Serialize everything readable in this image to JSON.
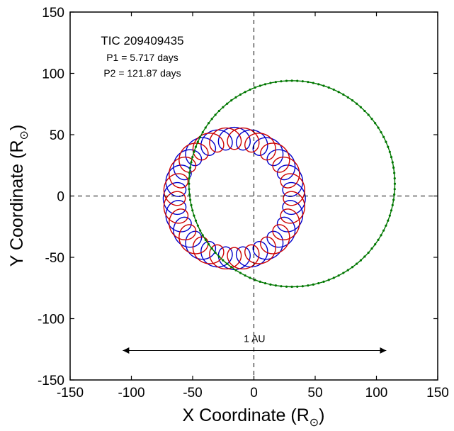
{
  "chart_data": {
    "type": "line",
    "xlabel": "X Coordinate",
    "ylabel": "Y Coordinate",
    "unit_symbol": "R",
    "unit_subscript": "⊙",
    "xlim": [
      -150,
      150
    ],
    "ylim": [
      -150,
      150
    ],
    "xticks": [
      -150,
      -100,
      -50,
      0,
      50,
      100,
      150
    ],
    "yticks": [
      -150,
      -100,
      -50,
      0,
      50,
      100,
      150
    ],
    "annotation": {
      "title": "TIC 209409435",
      "line1": "P1 = 5.717 days",
      "line2": "P2 = 121.87 days"
    },
    "scale_bar": {
      "label": "1 AU",
      "x_from": -107,
      "x_to": 108,
      "y": -126
    },
    "zero_lines": true,
    "series": [
      {
        "color": "#0000cc",
        "kind": "loops",
        "center": [
          -16,
          -2
        ],
        "radius": 49,
        "epicycle": 9,
        "loops": 21,
        "phase_deg": 0
      },
      {
        "color": "#cc0000",
        "kind": "loops",
        "center": [
          -16,
          -2
        ],
        "radius": 49,
        "epicycle": 9,
        "loops": 21,
        "phase_deg": 180
      },
      {
        "color": "#007700",
        "kind": "circle_with_markers",
        "center": [
          31,
          10
        ],
        "radius": 84,
        "markers": 120
      }
    ]
  }
}
